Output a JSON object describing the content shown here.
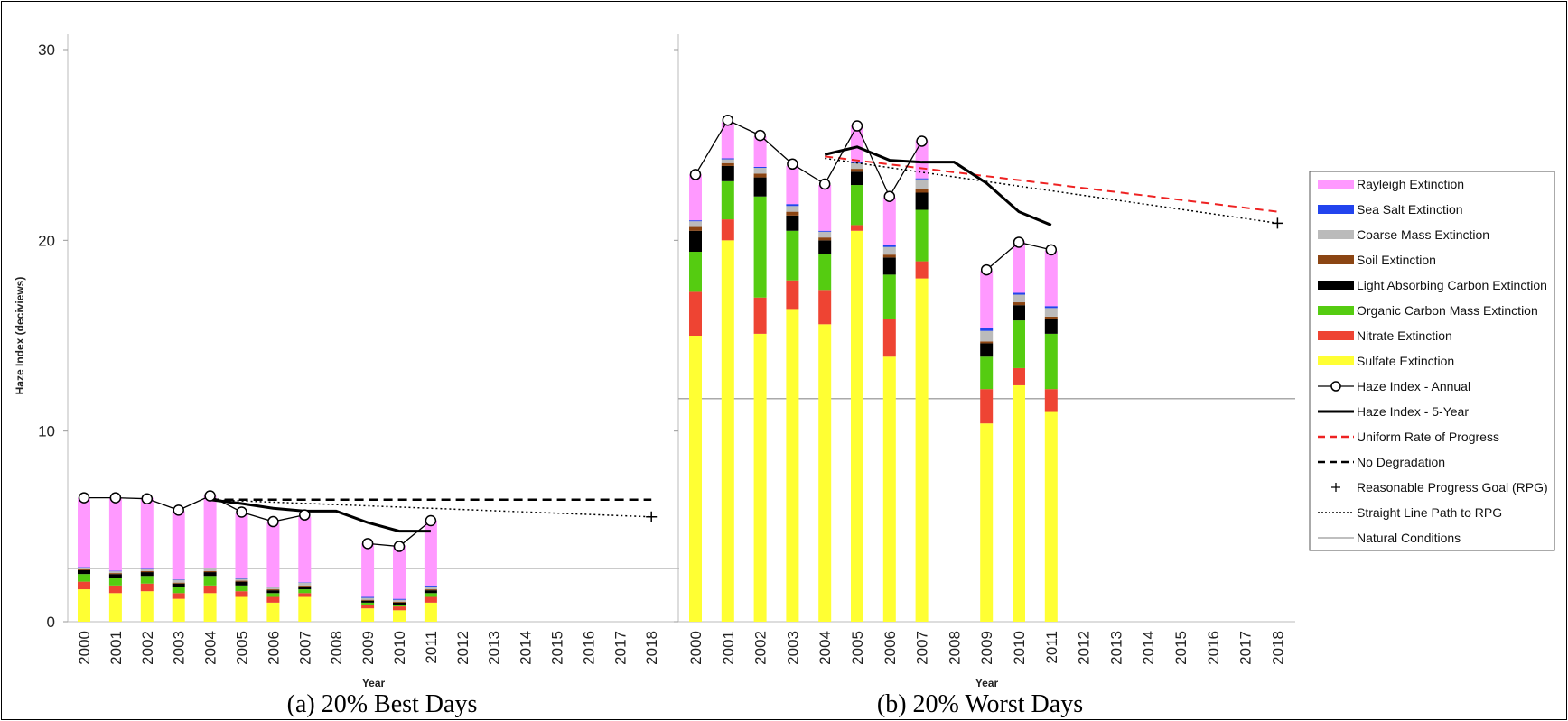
{
  "chart_data": [
    {
      "type": "bar",
      "caption": "(a) 20% Best Days",
      "ylabel": "Haze Index (deciviews)",
      "xlabel": "Year",
      "ylim": [
        0,
        30
      ],
      "yticks": [
        0,
        10,
        20,
        30
      ],
      "categories": [
        "2000",
        "2001",
        "2002",
        "2003",
        "2004",
        "2005",
        "2006",
        "2007",
        "2008",
        "2009",
        "2010",
        "2011",
        "2012",
        "2013",
        "2014",
        "2015",
        "2016",
        "2017",
        "2018"
      ],
      "stacked_series": [
        {
          "name": "Sulfate Extinction",
          "color": "#ffff33",
          "values": [
            1.7,
            1.5,
            1.6,
            1.2,
            1.5,
            1.3,
            1.0,
            1.3,
            null,
            0.7,
            0.6,
            1.0
          ]
        },
        {
          "name": "Nitrate Extinction",
          "color": "#ee4433",
          "values": [
            0.4,
            0.4,
            0.4,
            0.3,
            0.4,
            0.3,
            0.3,
            0.2,
            null,
            0.2,
            0.2,
            0.3
          ]
        },
        {
          "name": "Organic Carbon Mass Extinction",
          "color": "#55cc11",
          "values": [
            0.4,
            0.4,
            0.4,
            0.3,
            0.5,
            0.3,
            0.2,
            0.2,
            null,
            0.1,
            0.1,
            0.2
          ]
        },
        {
          "name": "Light Absorbing Carbon Extinction",
          "color": "#000000",
          "values": [
            0.2,
            0.2,
            0.2,
            0.2,
            0.2,
            0.2,
            0.15,
            0.15,
            null,
            0.1,
            0.1,
            0.15
          ]
        },
        {
          "name": "Soil Extinction",
          "color": "#8b4513",
          "values": [
            0.05,
            0.05,
            0.05,
            0.05,
            0.05,
            0.05,
            0.05,
            0.05,
            null,
            0.05,
            0.05,
            0.05
          ]
        },
        {
          "name": "Coarse Mass Extinction",
          "color": "#bbbbbb",
          "values": [
            0.1,
            0.1,
            0.1,
            0.15,
            0.15,
            0.1,
            0.1,
            0.15,
            null,
            0.1,
            0.1,
            0.15
          ]
        },
        {
          "name": "Sea Salt Extinction",
          "color": "#2244ee",
          "values": [
            0.02,
            0.02,
            0.02,
            0.02,
            0.02,
            0.02,
            0.02,
            0.02,
            null,
            0.05,
            0.05,
            0.05
          ]
        },
        {
          "name": "Rayleigh Extinction",
          "color": "#ff99ff",
          "values": [
            3.63,
            3.83,
            3.73,
            3.58,
            3.78,
            3.43,
            3.38,
            3.43,
            null,
            2.8,
            2.8,
            3.4
          ]
        }
      ],
      "haze_annual": [
        6.5,
        6.5,
        6.45,
        5.85,
        6.6,
        5.75,
        5.25,
        5.6,
        null,
        4.1,
        3.95,
        5.3
      ],
      "haze_5year": {
        "x": [
          "2004",
          "2005",
          "2006",
          "2007",
          "2008",
          "2009",
          "2010",
          "2011"
        ],
        "y": [
          6.4,
          6.2,
          5.95,
          5.8,
          5.8,
          5.2,
          4.75,
          4.75
        ]
      },
      "no_degradation": {
        "x": [
          "2004",
          "2018"
        ],
        "y": [
          6.4,
          6.4
        ]
      },
      "straight_line_path": {
        "x": [
          "2004",
          "2018"
        ],
        "y": [
          6.4,
          5.5
        ]
      },
      "rpg": {
        "x": "2018",
        "y": 5.5
      },
      "natural_conditions": 2.8
    },
    {
      "type": "bar",
      "caption": "(b) 20% Worst Days",
      "xlabel": "Year",
      "ylim": [
        0,
        30
      ],
      "categories": [
        "2000",
        "2001",
        "2002",
        "2003",
        "2004",
        "2005",
        "2006",
        "2007",
        "2008",
        "2009",
        "2010",
        "2011",
        "2012",
        "2013",
        "2014",
        "2015",
        "2016",
        "2017",
        "2018"
      ],
      "stacked_series": [
        {
          "name": "Sulfate Extinction",
          "color": "#ffff33",
          "values": [
            15.0,
            20.0,
            15.1,
            16.4,
            15.6,
            20.5,
            13.9,
            18.0,
            null,
            10.4,
            12.4,
            11.0
          ]
        },
        {
          "name": "Nitrate Extinction",
          "color": "#ee4433",
          "values": [
            2.3,
            1.1,
            1.9,
            1.5,
            1.8,
            0.3,
            2.0,
            0.9,
            null,
            1.8,
            0.9,
            1.2
          ]
        },
        {
          "name": "Organic Carbon Mass Extinction",
          "color": "#55cc11",
          "values": [
            2.1,
            2.0,
            5.3,
            2.6,
            1.9,
            2.1,
            2.3,
            2.7,
            null,
            1.7,
            2.5,
            2.9
          ]
        },
        {
          "name": "Light Absorbing Carbon Extinction",
          "color": "#000000",
          "values": [
            1.1,
            0.8,
            1.0,
            0.8,
            0.7,
            0.7,
            0.9,
            0.9,
            null,
            0.7,
            0.8,
            0.8
          ]
        },
        {
          "name": "Soil Extinction",
          "color": "#8b4513",
          "values": [
            0.2,
            0.15,
            0.2,
            0.2,
            0.15,
            0.15,
            0.15,
            0.2,
            null,
            0.1,
            0.15,
            0.1
          ]
        },
        {
          "name": "Coarse Mass Extinction",
          "color": "#bbbbbb",
          "values": [
            0.3,
            0.2,
            0.3,
            0.3,
            0.3,
            0.3,
            0.4,
            0.5,
            null,
            0.55,
            0.4,
            0.45
          ]
        },
        {
          "name": "Sea Salt Extinction",
          "color": "#2244ee",
          "values": [
            0.05,
            0.05,
            0.05,
            0.1,
            0.05,
            0.05,
            0.1,
            0.05,
            null,
            0.15,
            0.1,
            0.1
          ]
        },
        {
          "name": "Rayleigh Extinction",
          "color": "#ff99ff",
          "values": [
            2.4,
            1.9,
            1.6,
            2.0,
            2.4,
            1.9,
            2.5,
            2.0,
            null,
            3.0,
            2.7,
            2.9
          ]
        }
      ],
      "haze_annual": [
        23.45,
        26.3,
        25.5,
        24.0,
        22.95,
        26.0,
        22.3,
        25.2,
        null,
        18.45,
        19.9,
        19.5
      ],
      "haze_5year": {
        "x": [
          "2004",
          "2005",
          "2006",
          "2007",
          "2008",
          "2009",
          "2010",
          "2011"
        ],
        "y": [
          24.5,
          24.9,
          24.2,
          24.1,
          24.1,
          23.0,
          21.5,
          20.8
        ]
      },
      "uniform_rate_of_progress": {
        "x": [
          "2004",
          "2018"
        ],
        "y": [
          24.4,
          21.5
        ]
      },
      "straight_line_path": {
        "x": [
          "2004",
          "2018"
        ],
        "y": [
          24.3,
          20.9
        ]
      },
      "rpg": {
        "x": "2018",
        "y": 20.9
      },
      "natural_conditions": 11.7
    }
  ],
  "legend": {
    "placement": "right",
    "items": [
      {
        "label": "Rayleigh Extinction",
        "kind": "bar",
        "color": "#ff99ff"
      },
      {
        "label": "Sea Salt Extinction",
        "kind": "bar",
        "color": "#2244ee"
      },
      {
        "label": "Coarse Mass Extinction",
        "kind": "bar",
        "color": "#bbbbbb"
      },
      {
        "label": "Soil Extinction",
        "kind": "bar",
        "color": "#8b4513"
      },
      {
        "label": "Light Absorbing Carbon Extinction",
        "kind": "bar",
        "color": "#000000"
      },
      {
        "label": "Organic Carbon Mass Extinction",
        "kind": "bar",
        "color": "#55cc11"
      },
      {
        "label": "Nitrate Extinction",
        "kind": "bar",
        "color": "#ee4433"
      },
      {
        "label": "Sulfate Extinction",
        "kind": "bar",
        "color": "#ffff33"
      },
      {
        "label": "Haze Index - Annual",
        "kind": "line-marker",
        "color": "#000000"
      },
      {
        "label": "Haze Index - 5-Year",
        "kind": "thick-line",
        "color": "#000000"
      },
      {
        "label": "Uniform Rate of Progress",
        "kind": "dashed",
        "color": "#ee2222"
      },
      {
        "label": "No Degradation",
        "kind": "dashed",
        "color": "#000000"
      },
      {
        "label": "Reasonable Progress Goal (RPG)",
        "kind": "plus",
        "color": "#000000"
      },
      {
        "label": "Straight Line Path to RPG",
        "kind": "dotted",
        "color": "#000000"
      },
      {
        "label": "Natural Conditions",
        "kind": "thin",
        "color": "#aaaaaa"
      }
    ]
  }
}
